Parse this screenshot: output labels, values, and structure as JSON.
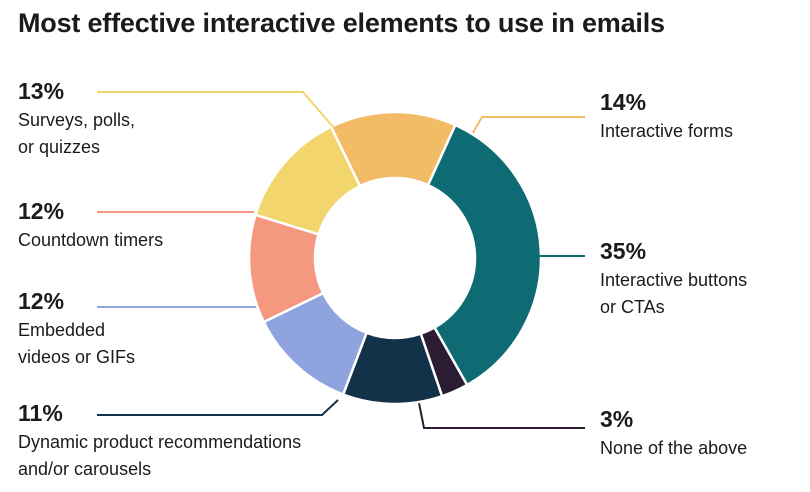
{
  "title": "Most effective interactive elements to use in emails",
  "chart_data": {
    "type": "pie",
    "variant": "donut",
    "title": "Most effective interactive elements to use in emails",
    "unit": "%",
    "slices": [
      {
        "pct_label": "14%",
        "value": 14,
        "label_lines": [
          "Interactive forms"
        ],
        "color": "#F2BC66"
      },
      {
        "pct_label": "35%",
        "value": 35,
        "label_lines": [
          "Interactive buttons",
          "or CTAs"
        ],
        "color": "#0F6B73"
      },
      {
        "pct_label": "3%",
        "value": 3,
        "label_lines": [
          "None of the above"
        ],
        "color": "#2B1C33"
      },
      {
        "pct_label": "11%",
        "value": 11,
        "label_lines": [
          "Dynamic product recommendations",
          "and/or carousels"
        ],
        "color": "#12324A"
      },
      {
        "pct_label": "12%",
        "value": 12,
        "label_lines": [
          "Embedded",
          "videos or GIFs"
        ],
        "color": "#8FA3DE"
      },
      {
        "pct_label": "12%",
        "value": 12,
        "label_lines": [
          "Countdown timers"
        ],
        "color": "#F59880"
      },
      {
        "pct_label": "13%",
        "value": 13,
        "label_lines": [
          "Surveys, polls,",
          "or quizzes"
        ],
        "color": "#F3D56E"
      }
    ]
  }
}
